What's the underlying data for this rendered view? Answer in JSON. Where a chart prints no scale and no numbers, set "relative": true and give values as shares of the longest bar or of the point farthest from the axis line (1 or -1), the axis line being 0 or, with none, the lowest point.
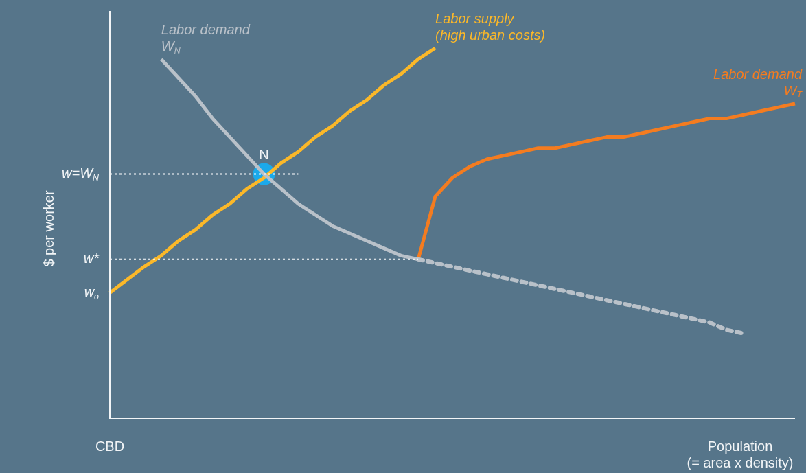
{
  "chart_data": {
    "type": "line",
    "relative": true,
    "legend": false,
    "marker": "none",
    "ylabel": "$ per worker",
    "xlabel": "Population\n(= area x density)",
    "annotations": [
      "CBD",
      "w$_{o}$",
      "N"
    ],
    "categories": [
      null,
      null,
      null,
      null,
      null,
      null,
      null,
      null,
      null,
      null,
      null,
      null,
      null,
      null,
      null,
      null,
      null,
      null,
      null,
      null,
      null,
      null,
      null,
      null,
      null,
      null,
      null,
      null,
      null,
      null,
      null,
      null,
      null,
      null,
      null,
      null,
      null,
      null,
      null,
      null,
      null
    ],
    "series": [
      {
        "name": "w=W$_{N}$",
        "color": "#ffffff",
        "line_style": "dotted",
        "values": [
          0.66,
          0.66,
          0.66,
          0.66,
          0.66,
          0.66,
          0.66,
          0.66,
          0.66,
          0.66,
          0.66,
          0.66,
          null,
          null,
          null,
          null,
          null,
          null,
          null,
          null,
          null,
          null,
          null,
          null,
          null,
          null,
          null,
          null,
          null,
          null,
          null,
          null,
          null,
          null,
          null,
          null,
          null,
          null,
          null,
          null,
          null
        ]
      },
      {
        "name": "w*",
        "color": "#ffffff",
        "line_style": "dotted",
        "values": [
          0.43,
          0.43,
          0.43,
          0.43,
          0.43,
          0.43,
          0.43,
          0.43,
          0.43,
          0.43,
          0.43,
          0.43,
          0.43,
          0.43,
          0.43,
          0.43,
          0.43,
          0.43,
          0.43,
          null,
          null,
          null,
          null,
          null,
          null,
          null,
          null,
          null,
          null,
          null,
          null,
          null,
          null,
          null,
          null,
          null,
          null,
          null,
          null,
          null,
          null
        ]
      },
      {
        "color": "#b9c1c9",
        "line_style": "dashed",
        "values": [
          null,
          null,
          null,
          null,
          null,
          null,
          null,
          null,
          null,
          null,
          null,
          null,
          null,
          null,
          null,
          null,
          null,
          null,
          0.43,
          0.42,
          0.41,
          0.4,
          0.39,
          0.38,
          0.37,
          0.36,
          0.35,
          0.34,
          0.33,
          0.32,
          0.31,
          0.3,
          0.29,
          0.28,
          0.27,
          0.26,
          0.24,
          0.23,
          null,
          null,
          null
        ]
      },
      {
        "name": "Labor demand\nW$_{N}$",
        "color": "#b9c1c9",
        "values": [
          null,
          null,
          null,
          0.97,
          0.92,
          0.87,
          0.81,
          0.76,
          0.71,
          0.66,
          0.62,
          0.58,
          0.55,
          0.52,
          0.5,
          0.48,
          0.46,
          0.44,
          0.43,
          null,
          null,
          null,
          null,
          null,
          null,
          null,
          null,
          null,
          null,
          null,
          null,
          null,
          null,
          null,
          null,
          null,
          null,
          null,
          null,
          null,
          null
        ]
      },
      {
        "name": "Labor supply\n(high urban costs)",
        "color": "#fbb829",
        "values": [
          0.34,
          0.375,
          0.41,
          0.44,
          0.48,
          0.51,
          0.55,
          0.58,
          0.62,
          0.65,
          0.69,
          0.72,
          0.76,
          0.79,
          0.83,
          0.86,
          0.9,
          0.93,
          0.97,
          1.0,
          null,
          null,
          null,
          null,
          null,
          null,
          null,
          null,
          null,
          null,
          null,
          null,
          null,
          null,
          null,
          null,
          null,
          null,
          null,
          null,
          null
        ]
      },
      {
        "name": "Labor demand\nW$_{T}$",
        "color": "#f47c20",
        "values": [
          null,
          null,
          null,
          null,
          null,
          null,
          null,
          null,
          null,
          null,
          null,
          null,
          null,
          null,
          null,
          null,
          null,
          null,
          0.43,
          0.6,
          0.65,
          0.68,
          0.7,
          0.71,
          0.72,
          0.73,
          0.73,
          0.74,
          0.75,
          0.76,
          0.76,
          0.77,
          0.78,
          0.79,
          0.8,
          0.81,
          0.81,
          0.82,
          0.83,
          0.84,
          0.85
        ]
      },
      {
        "marker": "circle",
        "color": "#1ba9ea",
        "values": [
          null,
          null,
          null,
          null,
          null,
          null,
          null,
          null,
          null,
          0.66,
          null,
          null,
          null,
          null,
          null,
          null,
          null,
          null,
          null,
          null,
          null,
          null,
          null,
          null,
          null,
          null,
          null,
          null,
          null,
          null,
          null,
          null,
          null,
          null,
          null,
          null,
          null,
          null,
          null,
          null,
          null
        ]
      }
    ]
  }
}
